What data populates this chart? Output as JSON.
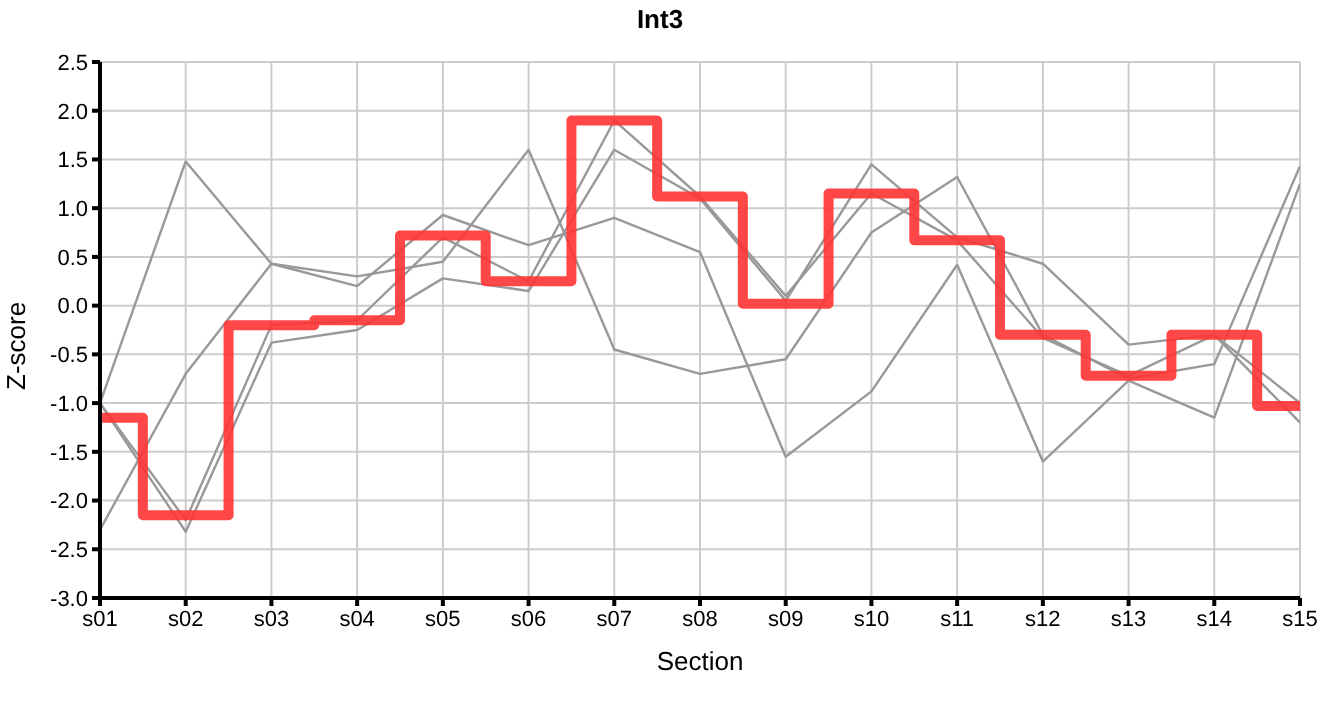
{
  "chart_data": {
    "type": "line",
    "title": "Int3",
    "xlabel": "Section",
    "ylabel": "Z-score",
    "categories": [
      "s01",
      "s02",
      "s03",
      "s04",
      "s05",
      "s06",
      "s07",
      "s08",
      "s09",
      "s10",
      "s11",
      "s12",
      "s13",
      "s14",
      "s15"
    ],
    "series": [
      {
        "color": "#999999",
        "values": [
          -1.0,
          1.48,
          0.43,
          0.3,
          0.45,
          1.6,
          -0.45,
          -0.7,
          -0.55,
          0.75,
          1.32,
          -0.3,
          -0.75,
          -0.6,
          1.43
        ]
      },
      {
        "color": "#999999",
        "values": [
          -2.3,
          -0.7,
          0.43,
          0.2,
          0.93,
          0.62,
          0.9,
          0.55,
          -1.55,
          -0.88,
          0.42,
          -1.6,
          -0.77,
          -1.15,
          1.25
        ]
      },
      {
        "color": "#999999",
        "values": [
          -1.0,
          -2.2,
          -0.2,
          -0.15,
          0.7,
          0.25,
          1.9,
          1.12,
          0.1,
          1.15,
          0.67,
          -0.33,
          -0.72,
          -0.3,
          -1.2
        ]
      },
      {
        "color": "#999999",
        "values": [
          -1.0,
          -2.32,
          -0.38,
          -0.25,
          0.28,
          0.15,
          1.6,
          1.1,
          0.05,
          1.45,
          0.7,
          0.43,
          -0.4,
          -0.3,
          -1.0
        ]
      },
      {
        "type": "step",
        "color": "#ff3333",
        "values": [
          -1.15,
          -2.15,
          -0.2,
          -0.15,
          0.72,
          0.25,
          1.9,
          1.12,
          0.02,
          1.15,
          0.67,
          -0.3,
          -0.72,
          -0.3,
          -1.03
        ]
      }
    ],
    "ylim": [
      -3.0,
      2.5
    ],
    "yticks": [
      2.5,
      {
        "value": 2,
        "label": "2.0"
      },
      1.5,
      {
        "value": 1,
        "label": "1.0"
      },
      0.5,
      {
        "value": 0,
        "label": "0.0"
      },
      -0.5,
      {
        "value": -1,
        "label": "-1.0"
      },
      -1.5,
      {
        "value": -2,
        "label": "-2.0"
      },
      -2.5,
      {
        "value": -3,
        "label": "-3.0"
      }
    ],
    "grid": true,
    "marker": "none"
  }
}
